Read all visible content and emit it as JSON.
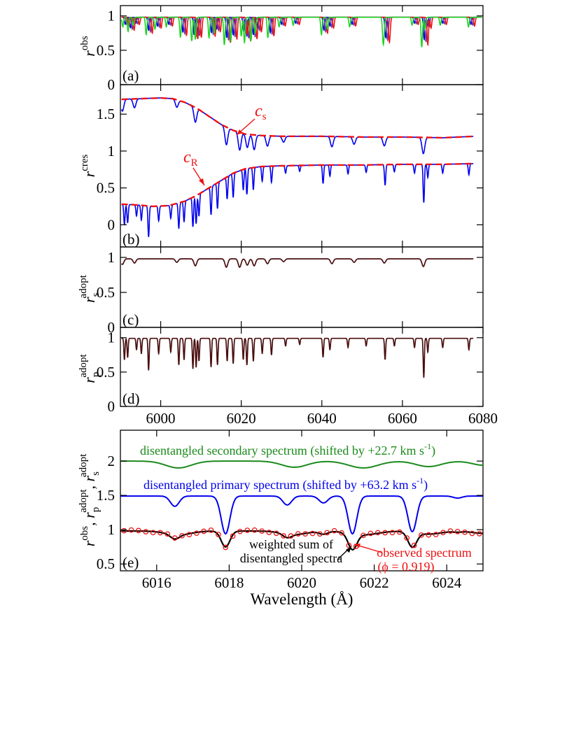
{
  "colors": {
    "axis": "#000000",
    "green": "#1fd31f",
    "blue": "#0000ee",
    "purple": "#6a3dab",
    "red": "#ee1111",
    "brown": "#4a0f10",
    "black": "#000000",
    "annotation_green": "#1a8a1a",
    "annotation_blue": "#0000ee",
    "annotation_red": "#ee1111"
  },
  "chart_data": [
    {
      "panel": "(a)",
      "type": "line",
      "ylabel": "r",
      "ylabel_sup": "obs",
      "xlim": [
        5990,
        6080
      ],
      "ylim": [
        0,
        1.15
      ],
      "yticks": [
        "0",
        "0.5",
        "1"
      ],
      "xticks": [
        6000,
        6020,
        6040,
        6060,
        6080
      ],
      "series_colors": [
        "#0000ee",
        "#6a3dab",
        "#ee1111",
        "#1fd31f"
      ],
      "continuum": 0.98,
      "lines": [
        {
          "x": 5991.2,
          "d": 0.12
        },
        {
          "x": 5992.5,
          "d": 0.18
        },
        {
          "x": 5993.8,
          "d": 0.1
        },
        {
          "x": 5997.0,
          "d": 0.22
        },
        {
          "x": 5999.2,
          "d": 0.15
        },
        {
          "x": 6002.0,
          "d": 0.12
        },
        {
          "x": 6005.5,
          "d": 0.25
        },
        {
          "x": 6008.3,
          "d": 0.3
        },
        {
          "x": 6009.2,
          "d": 0.28
        },
        {
          "x": 6012.6,
          "d": 0.26
        },
        {
          "x": 6013.9,
          "d": 0.2
        },
        {
          "x": 6016.4,
          "d": 0.35
        },
        {
          "x": 6018.0,
          "d": 0.3
        },
        {
          "x": 6020.6,
          "d": 0.24
        },
        {
          "x": 6021.4,
          "d": 0.32
        },
        {
          "x": 6023.0,
          "d": 0.3
        },
        {
          "x": 6024.1,
          "d": 0.2
        },
        {
          "x": 6027.2,
          "d": 0.26
        },
        {
          "x": 6030.0,
          "d": 0.12
        },
        {
          "x": 6033.5,
          "d": 0.1
        },
        {
          "x": 6040.5,
          "d": 0.22
        },
        {
          "x": 6042.0,
          "d": 0.15
        },
        {
          "x": 6047.5,
          "d": 0.12
        },
        {
          "x": 6055.8,
          "d": 0.25
        },
        {
          "x": 6056.0,
          "d": 0.15
        },
        {
          "x": 6063.0,
          "d": 0.1
        },
        {
          "x": 6065.4,
          "d": 0.38
        },
        {
          "x": 6066.2,
          "d": 0.15
        },
        {
          "x": 6070.0,
          "d": 0.1
        },
        {
          "x": 6077.0,
          "d": 0.12
        }
      ],
      "shifts": [
        0,
        0.45,
        0.9,
        -0.6
      ]
    },
    {
      "panel": "(b)",
      "type": "line",
      "ylabel": "r",
      "ylabel_sup": "cres",
      "xlim": [
        5990,
        6080
      ],
      "ylim": [
        -0.3,
        1.9
      ],
      "yticks": [
        "0",
        "0.5",
        "1",
        "1.5"
      ],
      "annotations": [
        {
          "text": "c",
          "sub": "s"
        },
        {
          "text": "c",
          "sub": "R"
        }
      ],
      "continuum_s": {
        "x": [
          5990,
          5995,
          6000,
          6003,
          6006,
          6009,
          6012,
          6015,
          6018,
          6021,
          6025,
          6030,
          6040,
          6050,
          6060,
          6070,
          6078
        ],
        "y": [
          1.7,
          1.71,
          1.72,
          1.71,
          1.66,
          1.58,
          1.47,
          1.36,
          1.28,
          1.23,
          1.21,
          1.2,
          1.2,
          1.19,
          1.19,
          1.18,
          1.2
        ]
      },
      "continuum_p": {
        "x": [
          5990,
          5994,
          5998,
          6002,
          6006,
          6009,
          6012,
          6015,
          6018,
          6021,
          6025,
          6030,
          6040,
          6050,
          6060,
          6070,
          6078
        ],
        "y": [
          0.28,
          0.27,
          0.25,
          0.26,
          0.32,
          0.4,
          0.5,
          0.6,
          0.7,
          0.76,
          0.79,
          0.8,
          0.81,
          0.81,
          0.82,
          0.82,
          0.83
        ]
      },
      "lines_s": [
        {
          "x": 5990.5,
          "d": 0.08
        },
        {
          "x": 5993.5,
          "d": 0.06
        },
        {
          "x": 6004.0,
          "d": 0.05
        },
        {
          "x": 6008.6,
          "d": 0.1
        },
        {
          "x": 6016.3,
          "d": 0.12
        },
        {
          "x": 6019.6,
          "d": 0.12
        },
        {
          "x": 6021.5,
          "d": 0.09
        },
        {
          "x": 6023.2,
          "d": 0.1
        },
        {
          "x": 6026.5,
          "d": 0.07
        },
        {
          "x": 6030.5,
          "d": 0.04
        },
        {
          "x": 6042.5,
          "d": 0.07
        },
        {
          "x": 6048.0,
          "d": 0.05
        },
        {
          "x": 6055.5,
          "d": 0.06
        },
        {
          "x": 6065.2,
          "d": 0.11
        }
      ],
      "lines_p": [
        {
          "x": 5991.0,
          "d": 0.28
        },
        {
          "x": 5991.8,
          "d": 0.25
        },
        {
          "x": 5994.0,
          "d": 0.15
        },
        {
          "x": 5995.2,
          "d": 0.2
        },
        {
          "x": 5997.0,
          "d": 0.42
        },
        {
          "x": 5999.5,
          "d": 0.2
        },
        {
          "x": 6002.5,
          "d": 0.18
        },
        {
          "x": 6004.5,
          "d": 0.35
        },
        {
          "x": 6005.8,
          "d": 0.28
        },
        {
          "x": 6008.0,
          "d": 0.4
        },
        {
          "x": 6008.8,
          "d": 0.38
        },
        {
          "x": 6009.5,
          "d": 0.3
        },
        {
          "x": 6012.5,
          "d": 0.38
        },
        {
          "x": 6014.1,
          "d": 0.35
        },
        {
          "x": 6016.5,
          "d": 0.3
        },
        {
          "x": 6018.0,
          "d": 0.33
        },
        {
          "x": 6020.5,
          "d": 0.28
        },
        {
          "x": 6021.4,
          "d": 0.35
        },
        {
          "x": 6023.0,
          "d": 0.3
        },
        {
          "x": 6025.2,
          "d": 0.2
        },
        {
          "x": 6027.5,
          "d": 0.22
        },
        {
          "x": 6031.0,
          "d": 0.1
        },
        {
          "x": 6034.5,
          "d": 0.08
        },
        {
          "x": 6040.3,
          "d": 0.25
        },
        {
          "x": 6042.0,
          "d": 0.15
        },
        {
          "x": 6046.5,
          "d": 0.12
        },
        {
          "x": 6051.0,
          "d": 0.1
        },
        {
          "x": 6055.7,
          "d": 0.28
        },
        {
          "x": 6058.0,
          "d": 0.1
        },
        {
          "x": 6063.0,
          "d": 0.12
        },
        {
          "x": 6065.3,
          "d": 0.52
        },
        {
          "x": 6066.3,
          "d": 0.18
        },
        {
          "x": 6070.0,
          "d": 0.12
        },
        {
          "x": 6076.5,
          "d": 0.15
        }
      ]
    },
    {
      "panel": "(c)",
      "type": "line",
      "ylabel": "r",
      "ylabel_sub": "s",
      "ylabel_sup": "adopt",
      "xlim": [
        5990,
        6080
      ],
      "ylim": [
        0,
        1.15
      ],
      "yticks": [
        "0",
        "0.5",
        "1"
      ],
      "continuum": 0.98,
      "lines": [
        {
          "x": 5990.5,
          "d": 0.08
        },
        {
          "x": 5993.5,
          "d": 0.06
        },
        {
          "x": 6004.0,
          "d": 0.05
        },
        {
          "x": 6008.6,
          "d": 0.1
        },
        {
          "x": 6016.3,
          "d": 0.12
        },
        {
          "x": 6019.6,
          "d": 0.12
        },
        {
          "x": 6021.5,
          "d": 0.09
        },
        {
          "x": 6023.2,
          "d": 0.1
        },
        {
          "x": 6026.5,
          "d": 0.07
        },
        {
          "x": 6030.5,
          "d": 0.04
        },
        {
          "x": 6042.5,
          "d": 0.07
        },
        {
          "x": 6048.0,
          "d": 0.05
        },
        {
          "x": 6055.5,
          "d": 0.06
        },
        {
          "x": 6065.2,
          "d": 0.11
        }
      ]
    },
    {
      "panel": "(d)",
      "type": "line",
      "ylabel": "r",
      "ylabel_sub": "p",
      "ylabel_sup": "adopt",
      "xlim": [
        5990,
        6080
      ],
      "ylim": [
        0,
        1.15
      ],
      "yticks": [
        "0",
        "0.5",
        "1"
      ],
      "xticks": [
        "6000",
        "6020",
        "6040",
        "6060",
        "6080"
      ],
      "continuum": 0.99,
      "lines": [
        {
          "x": 5991.0,
          "d": 0.28
        },
        {
          "x": 5991.8,
          "d": 0.25
        },
        {
          "x": 5994.0,
          "d": 0.15
        },
        {
          "x": 5995.2,
          "d": 0.2
        },
        {
          "x": 5997.0,
          "d": 0.42
        },
        {
          "x": 5999.5,
          "d": 0.2
        },
        {
          "x": 6002.5,
          "d": 0.18
        },
        {
          "x": 6004.5,
          "d": 0.35
        },
        {
          "x": 6005.8,
          "d": 0.28
        },
        {
          "x": 6008.0,
          "d": 0.4
        },
        {
          "x": 6008.8,
          "d": 0.38
        },
        {
          "x": 6009.5,
          "d": 0.3
        },
        {
          "x": 6012.5,
          "d": 0.38
        },
        {
          "x": 6014.1,
          "d": 0.35
        },
        {
          "x": 6016.5,
          "d": 0.3
        },
        {
          "x": 6018.0,
          "d": 0.33
        },
        {
          "x": 6020.5,
          "d": 0.28
        },
        {
          "x": 6021.4,
          "d": 0.35
        },
        {
          "x": 6023.0,
          "d": 0.3
        },
        {
          "x": 6025.2,
          "d": 0.2
        },
        {
          "x": 6027.5,
          "d": 0.22
        },
        {
          "x": 6031.0,
          "d": 0.1
        },
        {
          "x": 6034.5,
          "d": 0.08
        },
        {
          "x": 6040.3,
          "d": 0.25
        },
        {
          "x": 6042.0,
          "d": 0.15
        },
        {
          "x": 6046.5,
          "d": 0.12
        },
        {
          "x": 6051.0,
          "d": 0.1
        },
        {
          "x": 6055.7,
          "d": 0.28
        },
        {
          "x": 6058.0,
          "d": 0.1
        },
        {
          "x": 6063.0,
          "d": 0.12
        },
        {
          "x": 6065.3,
          "d": 0.52
        },
        {
          "x": 6066.3,
          "d": 0.18
        },
        {
          "x": 6070.0,
          "d": 0.12
        },
        {
          "x": 6076.5,
          "d": 0.15
        }
      ]
    },
    {
      "panel": "(e)",
      "type": "line",
      "xlabel": "Wavelength (Å)",
      "ylabel_parts": [
        "r",
        "obs",
        "",
        ", r",
        "adopt",
        "p",
        ", r",
        "adopt",
        "s"
      ],
      "xlim": [
        6015,
        6025
      ],
      "ylim": [
        0.4,
        2.45
      ],
      "yticks": [
        "0.5",
        "1",
        "1.5",
        "2"
      ],
      "xticks": [
        "6016",
        "6018",
        "6020",
        "6022",
        "6024"
      ],
      "labels": {
        "secondary": "disentangled secondary spectrum (shifted by +22.7 km s",
        "secondary_sup": "-1",
        "secondary_end": ")",
        "primary": "disentangled primary spectrum (shifted by +63.2 km s",
        "primary_sup": "-1",
        "primary_end": ")",
        "weighted_1": "weighted sum of",
        "weighted_2": "disentangled spectra",
        "observed_1": "observed spectrum",
        "observed_2": "(ϕ = 0.919)"
      },
      "secondary": {
        "offset": 2.0,
        "lines": [
          {
            "x": 6016.6,
            "d": 0.1,
            "w": 0.35
          },
          {
            "x": 6019.8,
            "d": 0.09,
            "w": 0.35
          },
          {
            "x": 6021.7,
            "d": 0.1,
            "w": 0.4
          },
          {
            "x": 6023.5,
            "d": 0.08,
            "w": 0.35
          },
          {
            "x": 6025.0,
            "d": 0.06,
            "w": 0.3
          }
        ]
      },
      "primary": {
        "offset": 1.49,
        "lines": [
          {
            "x": 6016.5,
            "d": 0.15,
            "w": 0.12
          },
          {
            "x": 6017.9,
            "d": 0.55,
            "w": 0.12
          },
          {
            "x": 6019.6,
            "d": 0.13,
            "w": 0.12
          },
          {
            "x": 6020.6,
            "d": 0.1,
            "w": 0.12
          },
          {
            "x": 6021.4,
            "d": 0.55,
            "w": 0.12
          },
          {
            "x": 6023.05,
            "d": 0.52,
            "w": 0.12
          },
          {
            "x": 6024.3,
            "d": 0.03,
            "w": 0.12
          }
        ]
      },
      "observed_points_step": 0.2
    }
  ]
}
